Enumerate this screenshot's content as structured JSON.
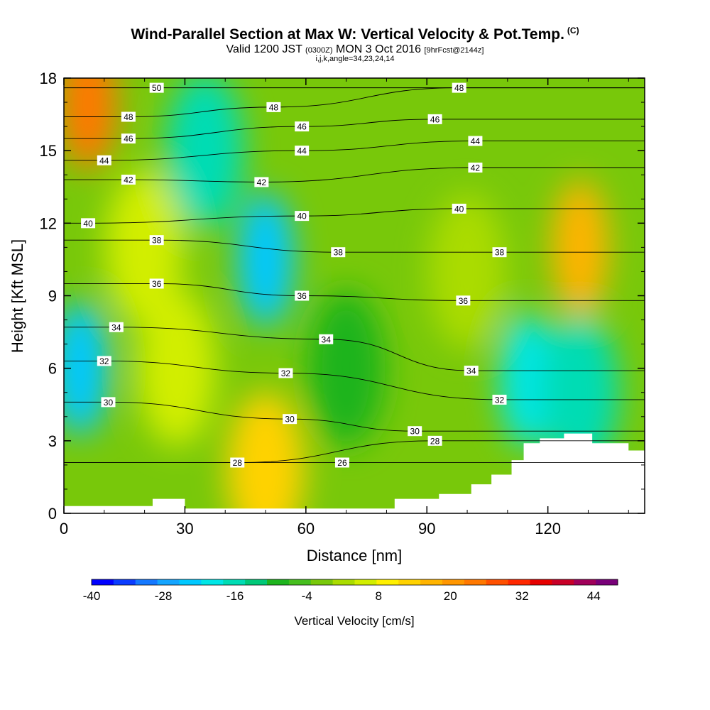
{
  "title": {
    "main": "Wind-Parallel Section at Max W: Vertical Velocity & Pot.Temp.",
    "copyright": "(C)",
    "valid_prefix": "Valid 1200 JST",
    "valid_utc": "(0300Z)",
    "valid_date": "MON 3 Oct 2016",
    "forecast": "[9hrFcst@2144z]",
    "params": "i,j,k,angle=34,23,24,14"
  },
  "chart_data": {
    "type": "contour",
    "xlabel": "Distance [nm]",
    "ylabel": "Height [Kft MSL]",
    "xlim": [
      0,
      144
    ],
    "ylim": [
      0,
      18
    ],
    "xticks": [
      0,
      30,
      60,
      90,
      120
    ],
    "xtick_labels": [
      "0",
      "30",
      "60",
      "90",
      "120"
    ],
    "yticks": [
      0,
      3,
      6,
      9,
      12,
      15,
      18
    ],
    "ytick_labels": [
      "0",
      "3",
      "6",
      "9",
      "12",
      "15",
      "18"
    ],
    "colorbar": {
      "title": "Vertical Velocity [cm/s]",
      "min": -40,
      "max": 48,
      "step": 4,
      "labels": [
        "-40",
        "-28",
        "-16",
        "-4",
        "8",
        "20",
        "32",
        "44"
      ],
      "label_values": [
        -40,
        -28,
        -16,
        -4,
        8,
        20,
        32,
        44
      ],
      "colors": [
        "#0000ff",
        "#0a3cff",
        "#1478ff",
        "#14a5ff",
        "#00c8ff",
        "#00e6e6",
        "#00dcb4",
        "#00c878",
        "#1eb41e",
        "#46be1e",
        "#78c80a",
        "#aadc00",
        "#d2ee00",
        "#fff000",
        "#ffd200",
        "#ffb400",
        "#ff9600",
        "#ff7800",
        "#ff5000",
        "#ff2800",
        "#e60000",
        "#c80028",
        "#a0005a",
        "#780078"
      ]
    },
    "terrain_heights_kft": [
      [
        0,
        0.3
      ],
      [
        22,
        0.3
      ],
      [
        22,
        0.6
      ],
      [
        30,
        0.6
      ],
      [
        30,
        0.2
      ],
      [
        38,
        0.2
      ],
      [
        38,
        0.2
      ],
      [
        82,
        0.2
      ],
      [
        82,
        0.6
      ],
      [
        93,
        0.6
      ],
      [
        93,
        0.8
      ],
      [
        101,
        0.8
      ],
      [
        101,
        1.2
      ],
      [
        106,
        1.2
      ],
      [
        106,
        1.6
      ],
      [
        111,
        1.6
      ],
      [
        111,
        2.2
      ],
      [
        114,
        2.2
      ],
      [
        114,
        2.9
      ],
      [
        118,
        2.9
      ],
      [
        118,
        3.1
      ],
      [
        124,
        3.1
      ],
      [
        124,
        3.3
      ],
      [
        131,
        3.3
      ],
      [
        131,
        2.9
      ],
      [
        140,
        2.9
      ],
      [
        140,
        2.6
      ],
      [
        144,
        2.6
      ]
    ],
    "vertical_velocity_features": [
      {
        "x": 6,
        "y": 17,
        "value": 28
      },
      {
        "x": 4,
        "y": 6,
        "value": -24
      },
      {
        "x": 50,
        "y": 10.5,
        "value": -22
      },
      {
        "x": 35,
        "y": 15,
        "value": -14
      },
      {
        "x": 115,
        "y": 5.5,
        "value": -20
      },
      {
        "x": 128,
        "y": 5,
        "value": -16
      },
      {
        "x": 128,
        "y": 11,
        "value": 20
      },
      {
        "x": 50,
        "y": 1.8,
        "value": 16
      },
      {
        "x": 20,
        "y": 11,
        "value": 10
      },
      {
        "x": 28,
        "y": 6,
        "value": 8
      },
      {
        "x": 70,
        "y": 6,
        "value": -6
      },
      {
        "x": 100,
        "y": 10,
        "value": 4
      }
    ],
    "pot_temp_contours": [
      {
        "value": 26,
        "label": "26",
        "label_x": 69,
        "label_y": 2.1
      },
      {
        "value": 28,
        "label": "28",
        "label_x": 43,
        "label_y": 2.1
      },
      {
        "value": 28,
        "label": "28",
        "label_x": 92,
        "label_y": 3.0
      },
      {
        "value": 30,
        "label": "30",
        "label_x": 11,
        "label_y": 4.6
      },
      {
        "value": 30,
        "label": "30",
        "label_x": 56,
        "label_y": 3.9
      },
      {
        "value": 30,
        "label": "30",
        "label_x": 87,
        "label_y": 3.4
      },
      {
        "value": 32,
        "label": "32",
        "label_x": 10,
        "label_y": 6.3
      },
      {
        "value": 32,
        "label": "32",
        "label_x": 55,
        "label_y": 5.8
      },
      {
        "value": 32,
        "label": "32",
        "label_x": 108,
        "label_y": 4.7
      },
      {
        "value": 34,
        "label": "34",
        "label_x": 13,
        "label_y": 7.7
      },
      {
        "value": 34,
        "label": "34",
        "label_x": 65,
        "label_y": 7.2
      },
      {
        "value": 34,
        "label": "34",
        "label_x": 101,
        "label_y": 5.9
      },
      {
        "value": 36,
        "label": "36",
        "label_x": 23,
        "label_y": 9.5
      },
      {
        "value": 36,
        "label": "36",
        "label_x": 59,
        "label_y": 9.0
      },
      {
        "value": 36,
        "label": "36",
        "label_x": 99,
        "label_y": 8.8
      },
      {
        "value": 38,
        "label": "38",
        "label_x": 23,
        "label_y": 11.3
      },
      {
        "value": 38,
        "label": "38",
        "label_x": 68,
        "label_y": 10.8
      },
      {
        "value": 38,
        "label": "38",
        "label_x": 108,
        "label_y": 10.8
      },
      {
        "value": 40,
        "label": "40",
        "label_x": 6,
        "label_y": 12.0
      },
      {
        "value": 40,
        "label": "40",
        "label_x": 59,
        "label_y": 12.3
      },
      {
        "value": 40,
        "label": "40",
        "label_x": 98,
        "label_y": 12.6
      },
      {
        "value": 42,
        "label": "42",
        "label_x": 16,
        "label_y": 13.8
      },
      {
        "value": 42,
        "label": "42",
        "label_x": 49,
        "label_y": 13.7
      },
      {
        "value": 42,
        "label": "42",
        "label_x": 102,
        "label_y": 14.3
      },
      {
        "value": 44,
        "label": "44",
        "label_x": 10,
        "label_y": 14.6
      },
      {
        "value": 44,
        "label": "44",
        "label_x": 59,
        "label_y": 15.0
      },
      {
        "value": 44,
        "label": "44",
        "label_x": 102,
        "label_y": 15.4
      },
      {
        "value": 46,
        "label": "46",
        "label_x": 16,
        "label_y": 15.5
      },
      {
        "value": 46,
        "label": "46",
        "label_x": 59,
        "label_y": 16.0
      },
      {
        "value": 46,
        "label": "46",
        "label_x": 92,
        "label_y": 16.3
      },
      {
        "value": 48,
        "label": "48",
        "label_x": 16,
        "label_y": 16.4
      },
      {
        "value": 48,
        "label": "48",
        "label_x": 52,
        "label_y": 16.8
      },
      {
        "value": 48,
        "label": "48",
        "label_x": 98,
        "label_y": 17.6
      },
      {
        "value": 50,
        "label": "50",
        "label_x": 23,
        "label_y": 17.6
      }
    ]
  }
}
